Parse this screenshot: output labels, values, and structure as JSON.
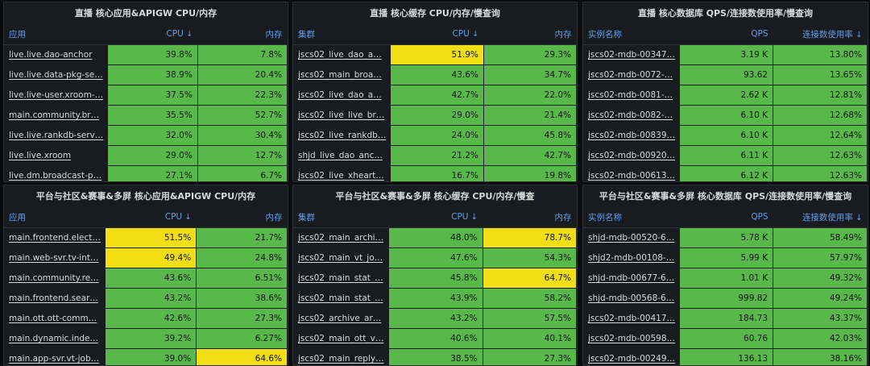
{
  "sort_arrow": "↓",
  "colors": {
    "green": "#58b84a",
    "yellow": "#f2de14",
    "header": "#5e9fe8"
  },
  "panels": [
    {
      "title": "直播 核心应用&APIGW CPU/内存",
      "headers": [
        "应用",
        "CPU",
        "内存"
      ],
      "sorted_col": 1,
      "rows": [
        [
          "live.live.dao-anchor",
          "39.8%",
          "7.8%"
        ],
        [
          "live.live.data-pkg-se…",
          "38.9%",
          "20.4%"
        ],
        [
          "live.live-user.xroom-…",
          "37.5%",
          "22.3%"
        ],
        [
          "main.community.br…",
          "35.5%",
          "52.7%"
        ],
        [
          "live.live.rankdb-serv…",
          "32.0%",
          "30.4%"
        ],
        [
          "live.live.xroom",
          "29.0%",
          "12.7%"
        ],
        [
          "live.dm.broadcast-p…",
          "27.1%",
          "6.7%"
        ]
      ],
      "highlight": []
    },
    {
      "title": "直播 核心缓存 CPU/内存/慢查询",
      "headers": [
        "集群",
        "CPU",
        "内存"
      ],
      "sorted_col": 1,
      "rows": [
        [
          "jscs02_live_dao_a…",
          "51.9%",
          "29.3%"
        ],
        [
          "jscs02_main_broa…",
          "43.6%",
          "34.7%"
        ],
        [
          "jscs02_live_dao_a…",
          "42.7%",
          "22.0%"
        ],
        [
          "jscs02_live_live_br…",
          "29.0%",
          "21.4%"
        ],
        [
          "jscs02_live_rankdb…",
          "24.0%",
          "45.8%"
        ],
        [
          "shjd_live_dao_anc…",
          "21.2%",
          "42.7%"
        ],
        [
          "jscs02_live_xheart…",
          "16.7%",
          "19.8%"
        ]
      ],
      "highlight": [
        [
          0,
          1
        ]
      ]
    },
    {
      "title": "直播 核心数据库 QPS/连接数使用率/慢查询",
      "headers": [
        "实例名称",
        "QPS",
        "连接数使用率"
      ],
      "sorted_col": 2,
      "rows": [
        [
          "jscs02-mdb-00347…",
          "3.19 K",
          "13.80%"
        ],
        [
          "jscs02-mdb-0072-…",
          "93.62",
          "13.65%"
        ],
        [
          "jscs02-mdb-0081-…",
          "2.62 K",
          "12.81%"
        ],
        [
          "jscs02-mdb-0082-…",
          "6.10 K",
          "12.68%"
        ],
        [
          "jscs02-mdb-00839…",
          "6.10 K",
          "12.64%"
        ],
        [
          "jscs02-mdb-00920…",
          "6.11 K",
          "12.63%"
        ],
        [
          "jscs02-mdb-00613…",
          "6.12 K",
          "12.63%"
        ]
      ],
      "highlight": []
    },
    {
      "title": "平台与社区&赛事&多屏 核心应用&APIGW CPU/内存",
      "headers": [
        "应用",
        "CPU",
        "内存"
      ],
      "sorted_col": 1,
      "rows": [
        [
          "main.frontend.elect…",
          "51.5%",
          "21.7%"
        ],
        [
          "main.web-svr.tv-int…",
          "49.4%",
          "24.8%"
        ],
        [
          "main.community.re…",
          "43.6%",
          "6.51%"
        ],
        [
          "main.frontend.sear…",
          "43.2%",
          "38.6%"
        ],
        [
          "main.ott.ott-comm…",
          "42.6%",
          "27.3%"
        ],
        [
          "main.dynamic.inde…",
          "39.2%",
          "6.27%"
        ],
        [
          "main.app-svr.vt-job…",
          "39.0%",
          "64.6%"
        ]
      ],
      "highlight": [
        [
          0,
          1
        ],
        [
          1,
          1
        ],
        [
          6,
          2
        ]
      ]
    },
    {
      "title": "平台与社区&赛事&多屏 核心缓存 CPU/内存/慢查",
      "headers": [
        "集群",
        "CPU",
        "内存"
      ],
      "sorted_col": 1,
      "rows": [
        [
          "jscs02_main_archi…",
          "48.0%",
          "78.7%"
        ],
        [
          "jscs02_main_vt_jo…",
          "47.6%",
          "54.3%"
        ],
        [
          "jscs02_main_stat_…",
          "45.8%",
          "64.7%"
        ],
        [
          "jscs02_main_stat_…",
          "43.9%",
          "58.2%"
        ],
        [
          "jscs02_archive_ar…",
          "43.2%",
          "57.5%"
        ],
        [
          "jscs02_main_ott_v…",
          "40.6%",
          "40.1%"
        ],
        [
          "jscs02_main_reply…",
          "38.5%",
          "27.3%"
        ]
      ],
      "highlight": [
        [
          0,
          2
        ],
        [
          2,
          2
        ]
      ]
    },
    {
      "title": "平台与社区&赛事&多屏 核心数据库 QPS/连接数使用率/慢查询",
      "headers": [
        "实例名称",
        "QPS",
        "连接数使用率"
      ],
      "sorted_col": 2,
      "rows": [
        [
          "shjd-mdb-00520-6…",
          "5.78 K",
          "58.49%"
        ],
        [
          "shjd2-mdb-00108-…",
          "5.99 K",
          "57.97%"
        ],
        [
          "shjd-mdb-00677-6…",
          "1.01 K",
          "49.32%"
        ],
        [
          "shjd-mdb-00568-6…",
          "999.82",
          "49.24%"
        ],
        [
          "jscs02-mdb-00417…",
          "184.73",
          "43.37%"
        ],
        [
          "jscs02-mdb-00598…",
          "60.76",
          "42.03%"
        ],
        [
          "jscs02-mdb-00249…",
          "136.13",
          "38.16%"
        ]
      ],
      "highlight": []
    }
  ]
}
